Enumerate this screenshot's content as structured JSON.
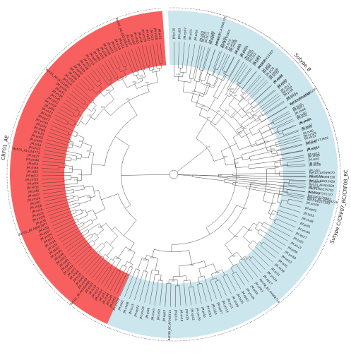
{
  "clades": [
    {
      "id": "crf01",
      "label": "CRF01_AE",
      "color": "#f7605f",
      "angle_start_deg": 94,
      "angle_end_deg": 248,
      "tip_prefix": "JM.",
      "tip_count": 95,
      "references": [
        "Ref.01_AE.AB220944",
        "Ref.01_AE.JX112807",
        "Ref.01_AE.U54771",
        "Ref.01_AE.AB097871",
        "Ref.01_AE.AF164485"
      ]
    },
    {
      "id": "subtype-b",
      "label": "Sutype B",
      "color": "#a95db5",
      "angle_start_deg": 2,
      "angle_end_deg": 80,
      "tip_prefix": "JM.",
      "tip_count": 26,
      "references": [
        "Ref.B.AY173956",
        "Ref.B.AY331295",
        "Ref.B.AY423387",
        "Ref.B.K03455"
      ]
    },
    {
      "id": "subtype-c",
      "label": "Sutype C/CRF07_BC/CRF08_BC",
      "color": "#cce6ee",
      "angle_start_deg": 246,
      "angle_end_deg": 452,
      "tip_prefix": "JM.",
      "tip_count": 90,
      "references": [
        "Ref.08_BC.AY008715",
        "Ref.08_BC.AY008716",
        "Ref.07_BC.AF286226",
        "Ref.07_BC.AF286230",
        "Ref.07_BC.AY006178"
      ]
    }
  ],
  "outgroup_tips": [
    "Ref.A1.AF069670",
    "Ref.A1.AB098330",
    "Ref.A1.AB253429",
    "Ref.A1.AF484509",
    "Ref.F1.AF075703",
    "Ref.F1.AY371157",
    "Ref.F.HQ179987",
    "Ref.F.GU111555"
  ],
  "visible_tips": [
    "JM.xh17",
    "JM.xh40",
    "JM.xh66",
    "JM.xh33",
    "JM.pi26",
    "JM.pi03",
    "JM.pi19",
    "JM.pi21",
    "JM.ts12",
    "JM.pi04",
    "JM.xh21",
    "JM.pi05",
    "JM.ym38",
    "JM.ts15",
    "JM.ep01",
    "JM.ep04",
    "JM.ts11",
    "JM.pi02",
    "JM.pi09",
    "JM.pi15",
    "JM.ep07",
    "JM.ts03",
    "JM.pi10",
    "JM.pi22"
  ],
  "bootstrap_value": "100",
  "colors": {
    "branch": "#3a3a3a",
    "outer_ring": "#555555"
  }
}
